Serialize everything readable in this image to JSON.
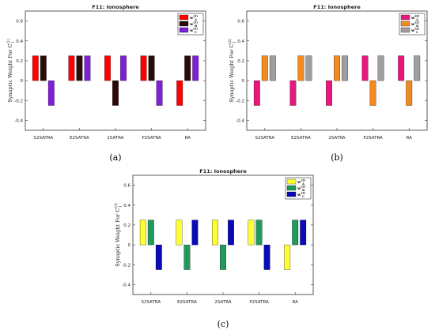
{
  "chart_data": [
    {
      "type": "bar",
      "panel_label": "(a)",
      "title": "F11: Ionosphere",
      "ylabel": "Synaptic Weight For C_j^(1)",
      "ylabel_main": "Synaptic Weight For C",
      "ylabel_sub": "j",
      "ylabel_sup": "(1)",
      "ylim": [
        -0.5,
        0.7
      ],
      "yticks": [
        -0.4,
        -0.2,
        0,
        0.2,
        0.4,
        0.6
      ],
      "ytick_labels": [
        "-0.4",
        "-0.2",
        "0",
        "0.2",
        "0.4",
        "0.6"
      ],
      "grid": false,
      "legend_placement": "top-right",
      "categories": [
        "S2SATRA",
        "E2SATRA",
        "2SATRA",
        "P2SATRA",
        "RA"
      ],
      "series": [
        {
          "name": "w_A^(1)",
          "base": "w",
          "sub": "A",
          "sup": "(1)",
          "color": "#ff0000",
          "values": [
            0.25,
            0.25,
            0.25,
            0.25,
            -0.25
          ]
        },
        {
          "name": "w_B^(1)",
          "base": "w",
          "sub": "B",
          "sup": "(1)",
          "color": "#2b0a0a",
          "values": [
            0.25,
            0.25,
            -0.25,
            0.25,
            0.25
          ]
        },
        {
          "name": "w_C^(1)",
          "base": "w",
          "sub": "C",
          "sup": "(1)",
          "color": "#7f1fd6",
          "values": [
            -0.25,
            0.25,
            0.25,
            -0.25,
            0.25
          ]
        }
      ]
    },
    {
      "type": "bar",
      "panel_label": "(b)",
      "title": "F11: Ionosphere",
      "ylabel": "Synaptic Weight For C_j^(2)",
      "ylabel_main": "Synaptic Weight For C",
      "ylabel_sub": "j",
      "ylabel_sup": "(2)",
      "ylim": [
        -0.5,
        0.7
      ],
      "yticks": [
        -0.4,
        -0.2,
        0,
        0.2,
        0.4,
        0.6
      ],
      "ytick_labels": [
        "-0.4",
        "-0.2",
        "0",
        "0.2",
        "0.4",
        "0.6"
      ],
      "grid": false,
      "legend_placement": "top-right",
      "categories": [
        "S2SATRA",
        "E2SATRA",
        "2SATRA",
        "P2SATRA",
        "RA"
      ],
      "series": [
        {
          "name": "w_A^(2)",
          "base": "w",
          "sub": "A",
          "sup": "(2)",
          "color": "#e8177d",
          "values": [
            -0.25,
            -0.25,
            -0.25,
            0.25,
            0.25
          ]
        },
        {
          "name": "w_B^(2)",
          "base": "w",
          "sub": "B",
          "sup": "(2)",
          "color": "#f28a1f",
          "values": [
            0.25,
            0.25,
            0.25,
            -0.25,
            -0.25
          ]
        },
        {
          "name": "w_C^(2)",
          "base": "w",
          "sub": "C",
          "sup": "(2)",
          "color": "#9e9e9e",
          "values": [
            0.25,
            0.25,
            0.25,
            0.25,
            0.25
          ]
        }
      ]
    },
    {
      "type": "bar",
      "panel_label": "(c)",
      "title": "F11: Ionosphere",
      "ylabel": "Synaptic Weight For C_j^(3)",
      "ylabel_main": "Synaptic Weight For C",
      "ylabel_sub": "j",
      "ylabel_sup": "(3)",
      "ylim": [
        -0.5,
        0.7
      ],
      "yticks": [
        -0.4,
        -0.2,
        0,
        0.2,
        0.4,
        0.6
      ],
      "ytick_labels": [
        "-0.4",
        "-0.2",
        "0",
        "0.2",
        "0.4",
        "0.6"
      ],
      "grid": false,
      "legend_placement": "top-right",
      "categories": [
        "S2SATRA",
        "E2SATRA",
        "2SATRA",
        "P2SATRA",
        "RA"
      ],
      "series": [
        {
          "name": "w_A^(3)",
          "base": "w",
          "sub": "A",
          "sup": "(3)",
          "color": "#ffff33",
          "values": [
            0.25,
            0.25,
            0.25,
            0.25,
            -0.25
          ]
        },
        {
          "name": "w_B^(3)",
          "base": "w",
          "sub": "B",
          "sup": "(3)",
          "color": "#1f9a5a",
          "values": [
            0.25,
            -0.25,
            -0.25,
            0.25,
            0.25
          ]
        },
        {
          "name": "w_C^(3)",
          "base": "w",
          "sub": "C",
          "sup": "(3)",
          "color": "#0a0ab8",
          "values": [
            -0.25,
            0.25,
            0.25,
            -0.25,
            0.25
          ]
        }
      ]
    }
  ]
}
